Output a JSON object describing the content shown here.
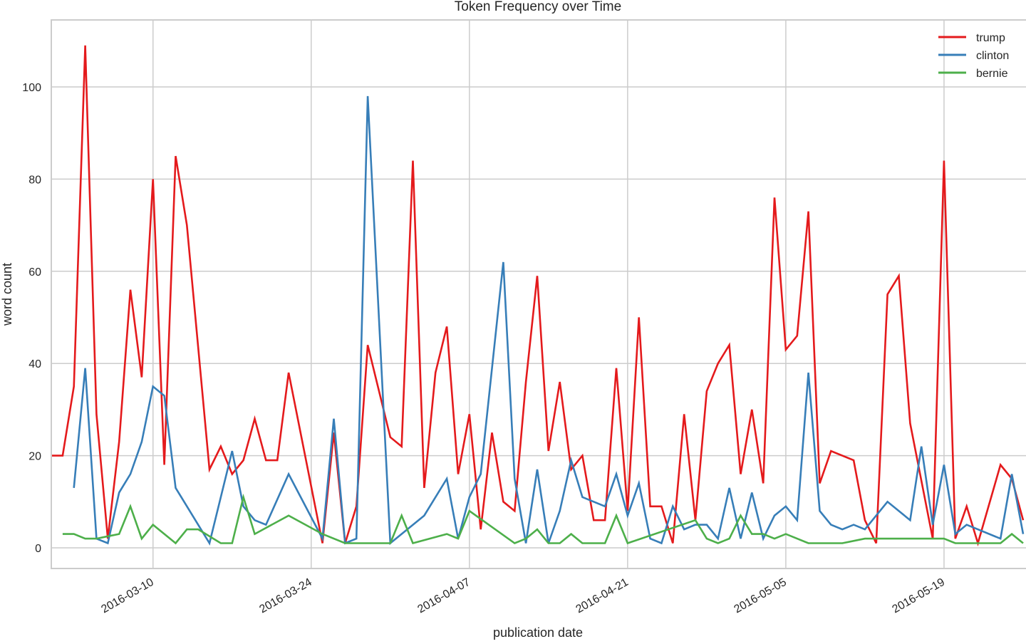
{
  "chart_data": {
    "type": "line",
    "title": "Token Frequency over Time",
    "xlabel": "publication date",
    "ylabel": "word count",
    "ylim": [
      -4.5,
      114
    ],
    "xlim_days": [
      0,
      86.3
    ],
    "x_start_date": "2016-03-01",
    "yticks": [
      0,
      20,
      40,
      60,
      80,
      100
    ],
    "xticks": [
      {
        "day": 9,
        "label": "2016-03-10"
      },
      {
        "day": 23,
        "label": "2016-03-24"
      },
      {
        "day": 37,
        "label": "2016-04-07"
      },
      {
        "day": 51,
        "label": "2016-04-21"
      },
      {
        "day": 65,
        "label": "2016-05-05"
      },
      {
        "day": 79,
        "label": "2016-05-19"
      }
    ],
    "grid": true,
    "legend_position": "upper right",
    "series": [
      {
        "name": "trump",
        "color": "#e41a1c",
        "points": [
          [
            0,
            20
          ],
          [
            1,
            20
          ],
          [
            2,
            35
          ],
          [
            3,
            109
          ],
          [
            4,
            29
          ],
          [
            5,
            2
          ],
          [
            6,
            23
          ],
          [
            7,
            56
          ],
          [
            8,
            37
          ],
          [
            9,
            80
          ],
          [
            10,
            18
          ],
          [
            11,
            85
          ],
          [
            12,
            70
          ],
          [
            14,
            17
          ],
          [
            15,
            22
          ],
          [
            16,
            16
          ],
          [
            17,
            19
          ],
          [
            18,
            28
          ],
          [
            19,
            19
          ],
          [
            20,
            19
          ],
          [
            21,
            38
          ],
          [
            24,
            1
          ],
          [
            25,
            25
          ],
          [
            26,
            1
          ],
          [
            27,
            9
          ],
          [
            28,
            44
          ],
          [
            30,
            24
          ],
          [
            31,
            22
          ],
          [
            32,
            84
          ],
          [
            33,
            13
          ],
          [
            34,
            38
          ],
          [
            35,
            48
          ],
          [
            36,
            16
          ],
          [
            37,
            29
          ],
          [
            38,
            4
          ],
          [
            39,
            25
          ],
          [
            40,
            10
          ],
          [
            41,
            8
          ],
          [
            42,
            36
          ],
          [
            43,
            59
          ],
          [
            44,
            21
          ],
          [
            45,
            36
          ],
          [
            46,
            17
          ],
          [
            47,
            20
          ],
          [
            48,
            6
          ],
          [
            49,
            6
          ],
          [
            50,
            39
          ],
          [
            51,
            8
          ],
          [
            52,
            50
          ],
          [
            53,
            9
          ],
          [
            54,
            9
          ],
          [
            55,
            1
          ],
          [
            56,
            29
          ],
          [
            57,
            6
          ],
          [
            58,
            34
          ],
          [
            59,
            40
          ],
          [
            60,
            44
          ],
          [
            61,
            16
          ],
          [
            62,
            30
          ],
          [
            63,
            14
          ],
          [
            64,
            76
          ],
          [
            65,
            43
          ],
          [
            66,
            46
          ],
          [
            67,
            73
          ],
          [
            68,
            14
          ],
          [
            69,
            21
          ],
          [
            71,
            19
          ],
          [
            72,
            6
          ],
          [
            73,
            1
          ],
          [
            74,
            55
          ],
          [
            75,
            59
          ],
          [
            76,
            27
          ],
          [
            78,
            2
          ],
          [
            79,
            84
          ],
          [
            80,
            2
          ],
          [
            81,
            9
          ],
          [
            82,
            1
          ],
          [
            84,
            18
          ],
          [
            85,
            15
          ],
          [
            86,
            6
          ]
        ]
      },
      {
        "name": "clinton",
        "color": "#377eb8",
        "points": [
          [
            2,
            13
          ],
          [
            3,
            39
          ],
          [
            4,
            2
          ],
          [
            5,
            1
          ],
          [
            6,
            12
          ],
          [
            7,
            16
          ],
          [
            8,
            23
          ],
          [
            9,
            35
          ],
          [
            10,
            33
          ],
          [
            11,
            13
          ],
          [
            14,
            1
          ],
          [
            16,
            21
          ],
          [
            17,
            9
          ],
          [
            18,
            6
          ],
          [
            19,
            5
          ],
          [
            21,
            16
          ],
          [
            24,
            2
          ],
          [
            25,
            28
          ],
          [
            26,
            1
          ],
          [
            27,
            2
          ],
          [
            28,
            98
          ],
          [
            30,
            1
          ],
          [
            33,
            7
          ],
          [
            35,
            15
          ],
          [
            36,
            2
          ],
          [
            37,
            11
          ],
          [
            38,
            16
          ],
          [
            40,
            62
          ],
          [
            41,
            15
          ],
          [
            42,
            1
          ],
          [
            43,
            17
          ],
          [
            44,
            1
          ],
          [
            45,
            8
          ],
          [
            46,
            19
          ],
          [
            47,
            11
          ],
          [
            49,
            9
          ],
          [
            50,
            16
          ],
          [
            51,
            7
          ],
          [
            52,
            14
          ],
          [
            53,
            2
          ],
          [
            54,
            1
          ],
          [
            55,
            9
          ],
          [
            56,
            4
          ],
          [
            57,
            5
          ],
          [
            58,
            5
          ],
          [
            59,
            2
          ],
          [
            60,
            13
          ],
          [
            61,
            2
          ],
          [
            62,
            12
          ],
          [
            63,
            2
          ],
          [
            64,
            7
          ],
          [
            65,
            9
          ],
          [
            66,
            6
          ],
          [
            67,
            38
          ],
          [
            68,
            8
          ],
          [
            69,
            5
          ],
          [
            70,
            4
          ],
          [
            71,
            5
          ],
          [
            72,
            4
          ],
          [
            74,
            10
          ],
          [
            76,
            6
          ],
          [
            77,
            22
          ],
          [
            78,
            5
          ],
          [
            79,
            18
          ],
          [
            80,
            3
          ],
          [
            81,
            5
          ],
          [
            84,
            2
          ],
          [
            85,
            16
          ],
          [
            86,
            3
          ]
        ]
      },
      {
        "name": "bernie",
        "color": "#4daf4a",
        "points": [
          [
            1,
            3
          ],
          [
            2,
            3
          ],
          [
            3,
            2
          ],
          [
            4,
            2
          ],
          [
            5,
            2.5
          ],
          [
            6,
            3
          ],
          [
            7,
            9
          ],
          [
            8,
            2
          ],
          [
            9,
            5
          ],
          [
            11,
            1
          ],
          [
            12,
            4
          ],
          [
            13,
            4
          ],
          [
            15,
            1
          ],
          [
            16,
            1
          ],
          [
            17,
            11
          ],
          [
            18,
            3
          ],
          [
            21,
            7
          ],
          [
            24,
            3
          ],
          [
            26,
            1
          ],
          [
            30,
            1
          ],
          [
            31,
            7
          ],
          [
            32,
            1
          ],
          [
            35,
            3
          ],
          [
            36,
            2
          ],
          [
            37,
            8
          ],
          [
            41,
            1
          ],
          [
            42,
            2
          ],
          [
            43,
            4
          ],
          [
            44,
            1
          ],
          [
            45,
            1
          ],
          [
            46,
            3
          ],
          [
            47,
            1
          ],
          [
            49,
            1
          ],
          [
            50,
            7
          ],
          [
            51,
            1
          ],
          [
            57,
            6
          ],
          [
            58,
            2
          ],
          [
            59,
            1
          ],
          [
            60,
            2
          ],
          [
            61,
            7
          ],
          [
            62,
            3
          ],
          [
            63,
            3
          ],
          [
            64,
            2
          ],
          [
            65,
            3
          ],
          [
            67,
            1
          ],
          [
            70,
            1
          ],
          [
            72,
            2
          ],
          [
            79,
            2
          ],
          [
            80,
            1
          ],
          [
            84,
            1
          ],
          [
            85,
            3
          ],
          [
            86,
            1
          ]
        ]
      }
    ]
  },
  "legend": {
    "items": [
      {
        "label": "trump",
        "color": "#e41a1c"
      },
      {
        "label": "clinton",
        "color": "#377eb8"
      },
      {
        "label": "bernie",
        "color": "#4daf4a"
      }
    ]
  }
}
